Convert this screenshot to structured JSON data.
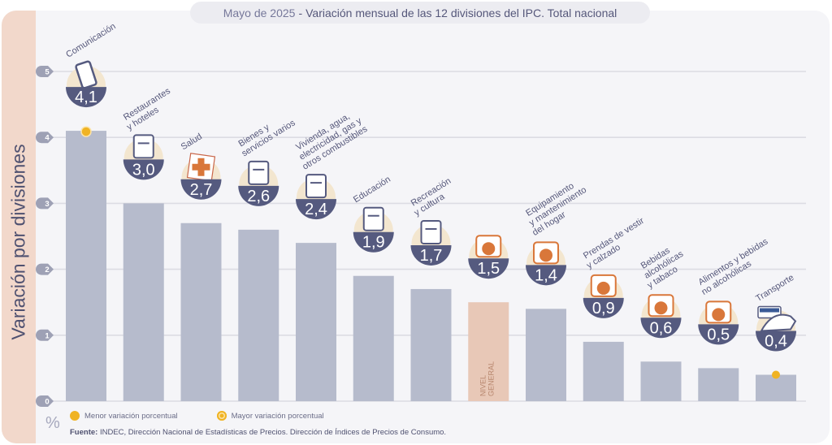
{
  "title": {
    "date": "Mayo de 2025",
    "separator": "-",
    "text": "Variación mensual de las 12 divisiones del IPC. Total nacional"
  },
  "y_axis_title": "Variación por divisiones",
  "unit_label": "%",
  "legend": {
    "min_label": "Menor variación porcentual",
    "max_label": "Mayor variación porcentual"
  },
  "source": {
    "prefix": "Fuente:",
    "text": "INDEC, Dirección Nacional de Estadísticas de Precios. Dirección de Índices de Precios de Consumo."
  },
  "colors": {
    "bar": "#b6bbcc",
    "general_bar": "#e8c8b7",
    "badge": "#555a7f",
    "accent_orange": "#d9773a",
    "marker_yellow": "#f0b323",
    "icon_backdrop": "#f3e6cf"
  },
  "chart_data": {
    "type": "bar",
    "title": "Mayo de 2025 - Variación mensual de las 12 divisiones del IPC. Total nacional",
    "xlabel": "",
    "ylabel": "Variación por divisiones",
    "y_unit": "%",
    "ylim": [
      0,
      5
    ],
    "yticks": [
      0,
      1,
      2,
      3,
      4,
      5
    ],
    "grid": true,
    "legend_position": "bottom-left",
    "categories": [
      "Comunicación",
      "Restaurantes y hoteles",
      "Salud",
      "Bienes y servicios varios",
      "Vivienda, agua, electricidad, gas y otros combustibles",
      "Educación",
      "Recreación y cultura",
      "Nivel general",
      "Equipamiento y mantenimiento del hogar",
      "Prendas de vestir y calzado",
      "Bebidas alcohólicas y tabaco",
      "Alimentos y bebidas no alcohólicas",
      "Transporte"
    ],
    "category_label_lines": [
      [
        "Comunicación"
      ],
      [
        "Restaurantes",
        "y hoteles"
      ],
      [
        "Salud"
      ],
      [
        "Bienes y",
        "servicios varios"
      ],
      [
        "Vivienda, agua,",
        "electricidad, gas y",
        "otros combustibles"
      ],
      [
        "Educación"
      ],
      [
        "Recreación",
        "y cultura"
      ],
      [
        "NIVEL",
        "GENERAL"
      ],
      [
        "Equipamiento",
        "y mantenimiento",
        "del hogar"
      ],
      [
        "Prendas de vestir",
        "y calzado"
      ],
      [
        "Bebidas",
        "alcohólicas",
        "y tabaco"
      ],
      [
        "Alimentos y bebidas",
        "no alcohólicas"
      ],
      [
        "Transporte"
      ]
    ],
    "values": [
      4.1,
      3.0,
      2.7,
      2.6,
      2.4,
      1.9,
      1.7,
      1.5,
      1.4,
      0.9,
      0.6,
      0.5,
      0.4
    ],
    "value_labels": [
      "4,1",
      "3,0",
      "2,7",
      "2,6",
      "2,4",
      "1,9",
      "1,7",
      "1,5",
      "1,4",
      "0,9",
      "0,6",
      "0,5",
      "0,4"
    ],
    "icons": [
      "phone-icon",
      "cutlery-icon",
      "medical-cross-icon",
      "comb-scissors-icon",
      "wrench-bulb-icon",
      "notebook-icon",
      "beach-umbrella-icon",
      "shopping-bag-icon",
      "washing-machine-icon",
      "tshirt-shoe-icon",
      "wine-bottle-icon",
      "food-plate-icon",
      "sube-car-icon"
    ],
    "highlight": {
      "max": "Comunicación",
      "min": "Transporte",
      "general": "Nivel general"
    }
  }
}
